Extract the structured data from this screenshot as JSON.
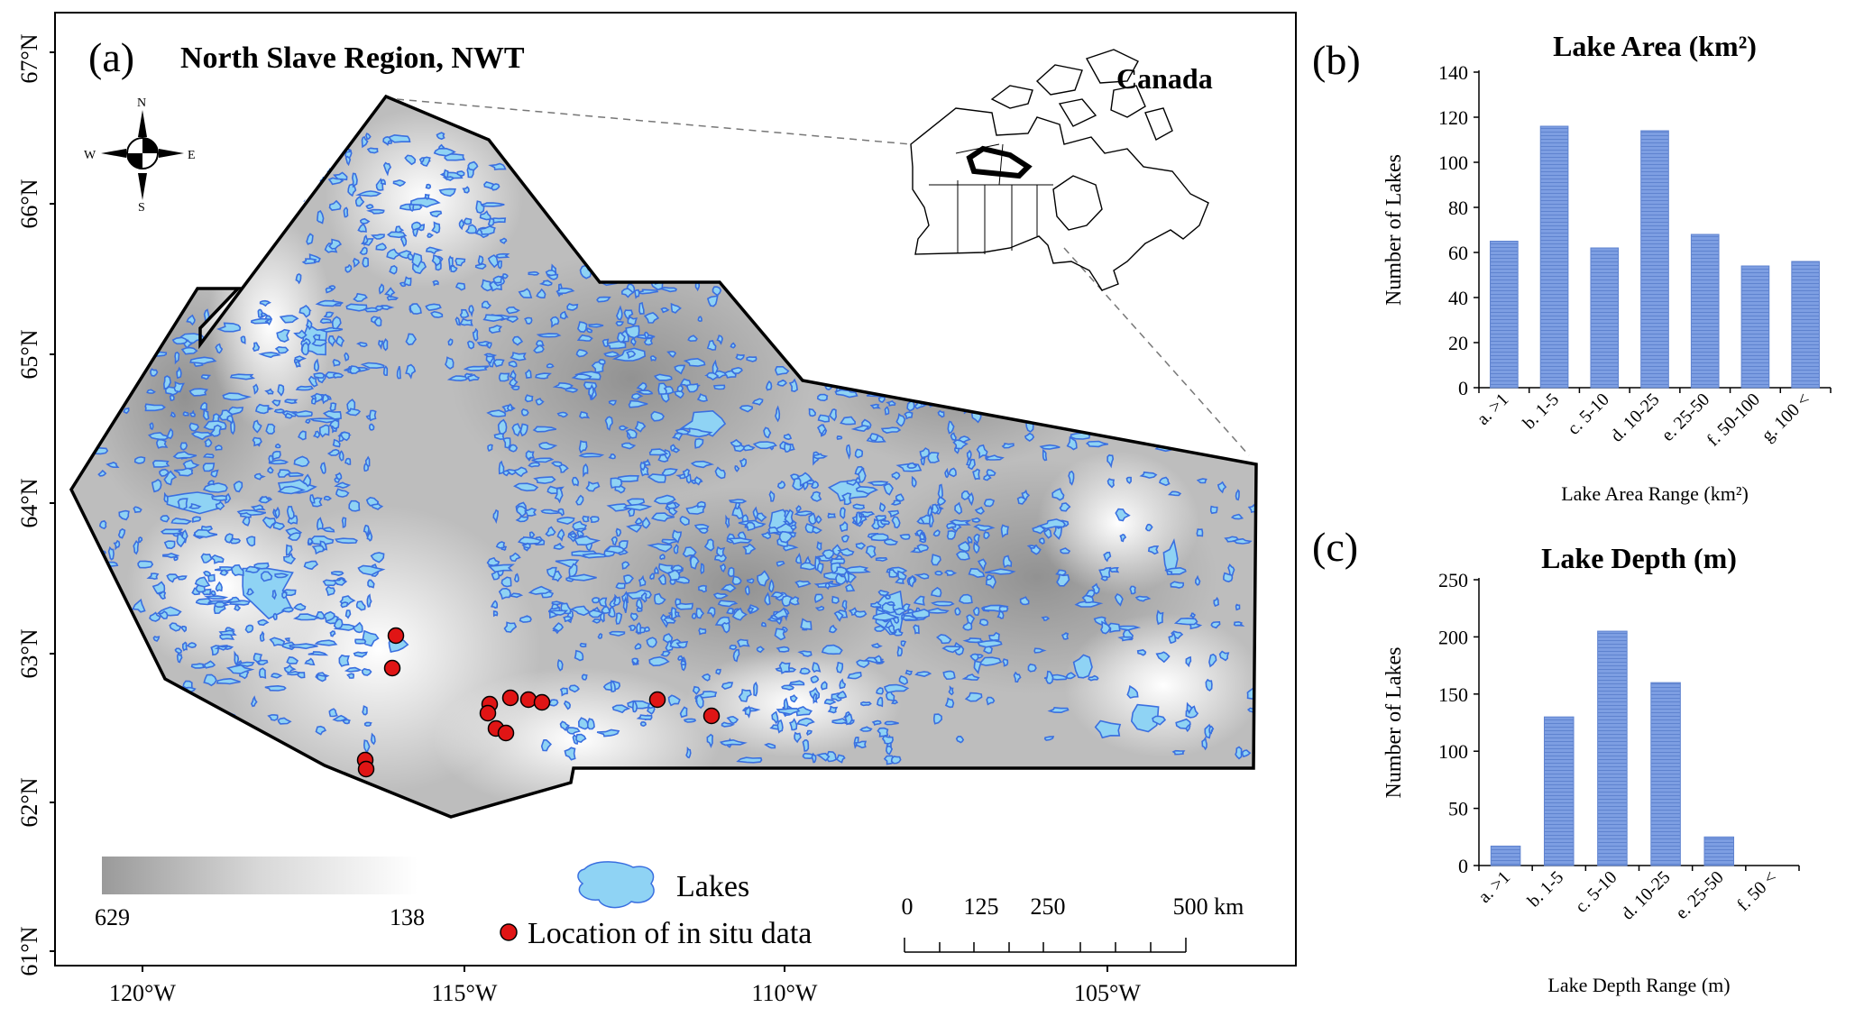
{
  "map": {
    "panel_letter": "(a)",
    "title": "North Slave Region, NWT",
    "inset_title": "Canada",
    "compass": {
      "n": "N",
      "s": "S",
      "e": "E",
      "w": "W"
    },
    "lat_labels": [
      "67°N",
      "66°N",
      "65°N",
      "64°N",
      "63°N",
      "62°N",
      "61°N"
    ],
    "lon_labels": [
      "120°W",
      "115°W",
      "110°W",
      "105°W"
    ],
    "colorbar": {
      "min_label": "629",
      "max_label": "138"
    },
    "legend": {
      "lakes": "Lakes",
      "insitu": "Location of in situ data"
    },
    "scalebar": {
      "labels": [
        "0",
        "125",
        "250",
        "500 km"
      ]
    },
    "colors": {
      "lake_fill": "#8fd3f4",
      "lake_edge": "#3a6fe0",
      "insitu": "#e01515",
      "boundary": "#000000"
    }
  },
  "chart_data": [
    {
      "type": "bar",
      "panel_letter": "(b)",
      "title": "Lake Area (km²)",
      "xlabel": "Lake Area Range (km²)",
      "ylabel": "Number of Lakes",
      "categories": [
        "a. >1",
        "b. 1-5",
        "c. 5-10",
        "d. 10-25",
        "e. 25-50",
        "f. 50-100",
        "g. 100 <"
      ],
      "values": [
        65,
        116,
        62,
        114,
        68,
        54,
        56
      ],
      "ylim": [
        0,
        140
      ],
      "yticks": [
        0,
        20,
        40,
        60,
        80,
        100,
        120,
        140
      ],
      "bar_color": "#6b8fd8"
    },
    {
      "type": "bar",
      "panel_letter": "(c)",
      "title": "Lake Depth (m)",
      "xlabel": "Lake Depth Range (m)",
      "ylabel": "Number of Lakes",
      "categories": [
        "a. >1",
        "b. 1-5",
        "c. 5-10",
        "d. 10-25",
        "e. 25-50",
        "f. 50 <"
      ],
      "values": [
        17,
        130,
        205,
        160,
        25,
        0
      ],
      "ylim": [
        0,
        250
      ],
      "yticks": [
        0,
        50,
        100,
        150,
        200,
        250
      ],
      "bar_color": "#6b8fd8"
    }
  ]
}
